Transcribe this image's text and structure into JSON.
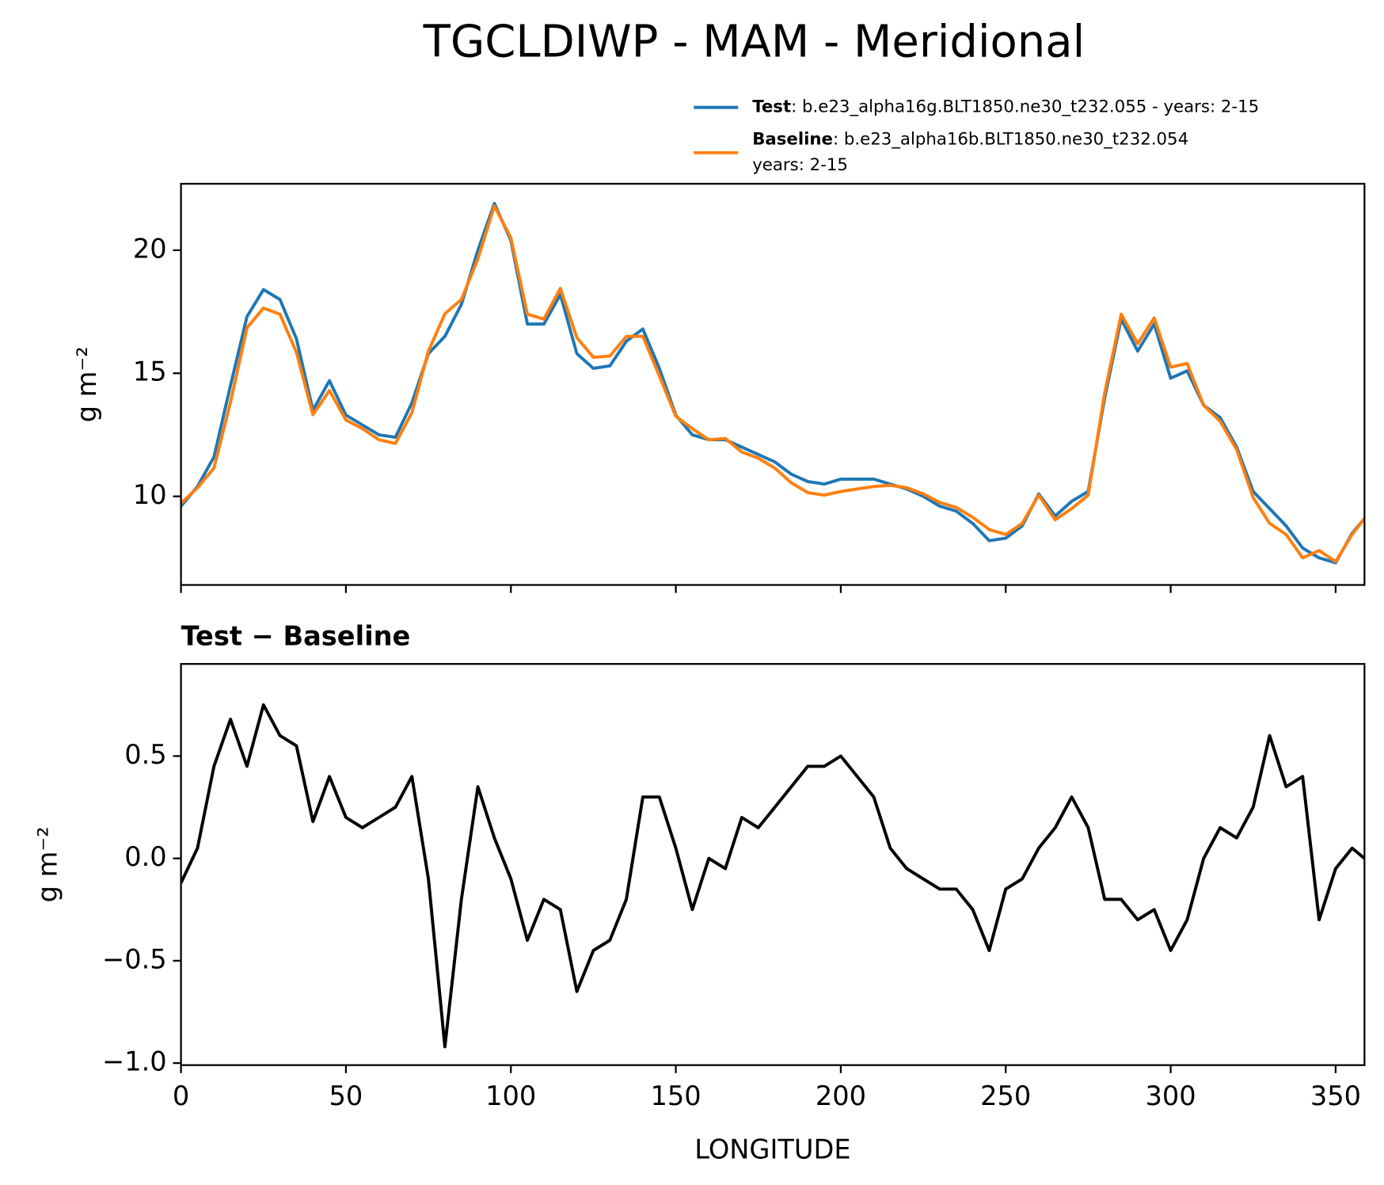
{
  "title": "TGCLDIWP - MAM - Meridional",
  "chart_data": [
    {
      "type": "line",
      "ylabel": "g m⁻²",
      "x": [
        0,
        5,
        10,
        15,
        20,
        25,
        30,
        35,
        40,
        45,
        50,
        55,
        60,
        65,
        70,
        75,
        80,
        85,
        90,
        95,
        100,
        105,
        110,
        115,
        120,
        125,
        130,
        135,
        140,
        145,
        150,
        155,
        160,
        165,
        170,
        175,
        180,
        185,
        190,
        195,
        200,
        205,
        210,
        215,
        220,
        225,
        230,
        235,
        240,
        245,
        250,
        255,
        260,
        265,
        270,
        275,
        280,
        285,
        290,
        295,
        300,
        305,
        310,
        315,
        320,
        325,
        330,
        335,
        340,
        345,
        350,
        355,
        358.75
      ],
      "series": [
        {
          "name": "Test",
          "description": [
            ": b.e23_alpha16g.BLT1850.ne30_t232.055 - years: 2-15"
          ],
          "color": "#1f77b4",
          "values": [
            9.6,
            10.4,
            11.6,
            14.5,
            17.3,
            18.4,
            18.0,
            16.4,
            13.5,
            14.7,
            13.3,
            12.9,
            12.5,
            12.4,
            13.8,
            15.8,
            16.5,
            17.8,
            20.0,
            21.9,
            20.4,
            17.0,
            17.0,
            18.2,
            15.8,
            15.2,
            15.3,
            16.3,
            16.8,
            15.2,
            13.3,
            12.5,
            12.3,
            12.3,
            12.0,
            11.7,
            11.4,
            10.9,
            10.6,
            10.5,
            10.7,
            10.7,
            10.7,
            10.5,
            10.3,
            10.0,
            9.6,
            9.4,
            8.9,
            8.2,
            8.3,
            8.8,
            10.1,
            9.2,
            9.8,
            10.2,
            14.0,
            17.2,
            15.9,
            17.0,
            14.8,
            15.1,
            13.7,
            13.2,
            12.0,
            10.2,
            9.5,
            8.8,
            7.9,
            7.5,
            7.3,
            8.5,
            9.1
          ]
        },
        {
          "name": "Baseline",
          "description": [
            ": b.e23_alpha16b.BLT1850.ne30_t232.054",
            "years: 2-15"
          ],
          "color": "#ff7f0e",
          "values": [
            9.72,
            10.35,
            11.15,
            13.82,
            16.85,
            17.65,
            17.4,
            15.85,
            13.32,
            14.3,
            13.1,
            12.75,
            12.3,
            12.15,
            13.4,
            15.9,
            17.42,
            18.0,
            19.65,
            21.8,
            20.5,
            17.4,
            17.2,
            18.45,
            16.45,
            15.65,
            15.7,
            16.5,
            16.5,
            14.9,
            13.25,
            12.75,
            12.3,
            12.35,
            11.8,
            11.55,
            11.15,
            10.55,
            10.15,
            10.05,
            10.2,
            10.3,
            10.4,
            10.45,
            10.35,
            10.1,
            9.75,
            9.55,
            9.15,
            8.65,
            8.45,
            8.9,
            10.05,
            9.05,
            9.5,
            10.05,
            14.2,
            17.4,
            16.2,
            17.25,
            15.25,
            15.4,
            13.7,
            13.05,
            11.9,
            9.95,
            8.9,
            8.45,
            7.5,
            7.8,
            7.35,
            8.45,
            9.1
          ]
        }
      ],
      "xlim": [
        0,
        358.75
      ],
      "xticks": [
        0,
        50,
        100,
        150,
        200,
        250,
        300,
        350
      ],
      "xticklabels": false,
      "ylim": [
        6.4,
        22.7
      ],
      "yticks": [
        10,
        15,
        20
      ]
    },
    {
      "type": "line",
      "title": "Test − Baseline",
      "xlabel": "LONGITUDE",
      "ylabel": "g m⁻²",
      "x": [
        0,
        5,
        10,
        15,
        20,
        25,
        30,
        35,
        40,
        45,
        50,
        55,
        60,
        65,
        70,
        75,
        80,
        85,
        90,
        95,
        100,
        105,
        110,
        115,
        120,
        125,
        130,
        135,
        140,
        145,
        150,
        155,
        160,
        165,
        170,
        175,
        180,
        185,
        190,
        195,
        200,
        205,
        210,
        215,
        220,
        225,
        230,
        235,
        240,
        245,
        250,
        255,
        260,
        265,
        270,
        275,
        280,
        285,
        290,
        295,
        300,
        305,
        310,
        315,
        320,
        325,
        330,
        335,
        340,
        345,
        350,
        355,
        358.75
      ],
      "series": [
        {
          "color": "#000000",
          "values": [
            -0.12,
            0.05,
            0.45,
            0.68,
            0.45,
            0.75,
            0.6,
            0.55,
            0.18,
            0.4,
            0.2,
            0.15,
            0.2,
            0.25,
            0.4,
            -0.1,
            -0.92,
            -0.2,
            0.35,
            0.1,
            -0.1,
            -0.4,
            -0.2,
            -0.25,
            -0.65,
            -0.45,
            -0.4,
            -0.2,
            0.3,
            0.3,
            0.05,
            -0.25,
            0.0,
            -0.05,
            0.2,
            0.15,
            0.25,
            0.35,
            0.45,
            0.45,
            0.5,
            0.4,
            0.3,
            0.05,
            -0.05,
            -0.1,
            -0.15,
            -0.15,
            -0.25,
            -0.45,
            -0.15,
            -0.1,
            0.05,
            0.15,
            0.3,
            0.15,
            -0.2,
            -0.2,
            -0.3,
            -0.25,
            -0.45,
            -0.3,
            0.0,
            0.15,
            0.1,
            0.25,
            0.6,
            0.35,
            0.4,
            -0.3,
            -0.05,
            0.05,
            0.0
          ]
        }
      ],
      "xlim": [
        0,
        358.75
      ],
      "xticks": [
        0,
        50,
        100,
        150,
        200,
        250,
        300,
        350
      ],
      "ylim": [
        -1.01,
        0.95
      ],
      "yticks": [
        {
          "value": -1.0,
          "label": "−1.0"
        },
        {
          "value": -0.5,
          "label": "−0.5"
        },
        {
          "value": 0.0,
          "label": "0.0"
        },
        0.5
      ]
    }
  ]
}
